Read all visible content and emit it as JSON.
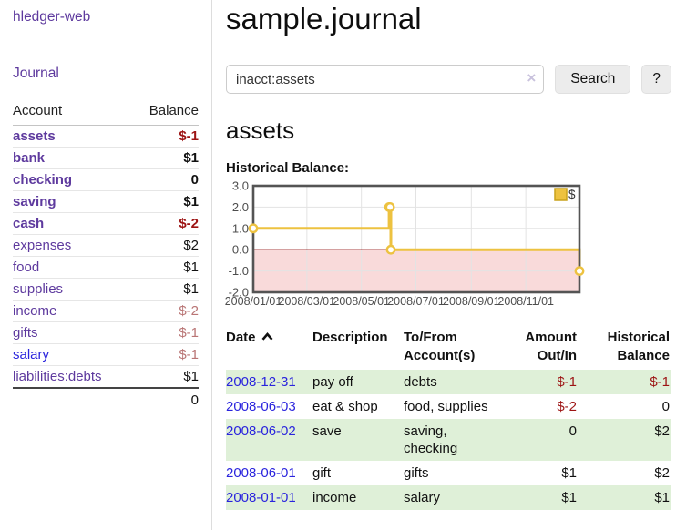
{
  "app": {
    "title": "hledger-web"
  },
  "sidebar": {
    "journal_link": "Journal",
    "accounts": {
      "header": {
        "account": "Account",
        "balance": "Balance"
      },
      "rows": [
        {
          "label": "assets",
          "depth": 1,
          "bold": true,
          "balance": "$-1",
          "negative": "strong"
        },
        {
          "label": "bank",
          "depth": 2,
          "bold": true,
          "balance": "$1"
        },
        {
          "label": "checking",
          "depth": 3,
          "bold": true,
          "balance": "0"
        },
        {
          "label": "saving",
          "depth": 3,
          "bold": true,
          "balance": "$1"
        },
        {
          "label": "cash",
          "depth": 2,
          "bold": true,
          "balance": "$-2",
          "negative": "strong"
        },
        {
          "label": "expenses",
          "depth": 1,
          "bold": false,
          "balance": "$2"
        },
        {
          "label": "food",
          "depth": 2,
          "bold": false,
          "balance": "$1"
        },
        {
          "label": "supplies",
          "depth": 2,
          "bold": false,
          "balance": "$1"
        },
        {
          "label": "income",
          "depth": 1,
          "bold": false,
          "balance": "$-2",
          "negative": "muted"
        },
        {
          "label": "gifts",
          "depth": 2,
          "bold": false,
          "balance": "$-1",
          "negative": "muted"
        },
        {
          "label": "salary",
          "depth": 2,
          "bold": false,
          "balance": "$-1",
          "negative": "muted",
          "link_style": "blue"
        },
        {
          "label": "liabilities:debts",
          "depth": 1,
          "bold": false,
          "balance": "$1"
        }
      ],
      "total": "0"
    }
  },
  "main": {
    "title": "sample.journal",
    "search": {
      "value": "inacct:assets",
      "clear_icon": "×",
      "search_button": "Search",
      "help_button": "?"
    },
    "account_heading": "assets",
    "chart_label": "Historical Balance:"
  },
  "chart_data": {
    "type": "line",
    "title": "Historical Balance",
    "step": true,
    "series": [
      {
        "name": "$",
        "color": "#edc240",
        "points": [
          [
            "2008-01-01",
            1
          ],
          [
            "2008-06-01",
            2
          ],
          [
            "2008-06-02",
            2
          ],
          [
            "2008-06-03",
            0
          ],
          [
            "2008-12-31",
            -1
          ]
        ]
      }
    ],
    "xlim": [
      "2008-01-01",
      "2008-12-31"
    ],
    "ylim": [
      -2,
      3
    ],
    "y_ticks": [
      "3.0",
      "2.0",
      "1.0",
      "0.0",
      "-1.0",
      "-2.0"
    ],
    "x_ticks": [
      "2008/01/01",
      "2008/03/01",
      "2008/05/01",
      "2008/07/01",
      "2008/09/01",
      "2008/11/01"
    ],
    "grid": true,
    "legend": {
      "position": "top-right",
      "label": "$"
    },
    "negative_region_fill": "#f9dada",
    "zero_line_color": "#8b0000",
    "grid_color": "#e3e3e3",
    "border_color": "#545454"
  },
  "register": {
    "columns": [
      {
        "label": "Date",
        "align": "left",
        "sorted": "asc"
      },
      {
        "label": "Description",
        "align": "left"
      },
      {
        "label": "To/From Account(s)",
        "align": "left"
      },
      {
        "label": "Amount Out/In",
        "align": "right"
      },
      {
        "label": "Historical Balance",
        "align": "right"
      }
    ],
    "rows": [
      {
        "date": "2008-12-31",
        "description": "pay off",
        "accounts": "debts",
        "amount": "$-1",
        "amount_neg": true,
        "balance": "$-1",
        "balance_neg": true,
        "shaded": true
      },
      {
        "date": "2008-06-03",
        "description": "eat & shop",
        "accounts": "food, supplies",
        "amount": "$-2",
        "amount_neg": true,
        "balance": "0",
        "balance_neg": false,
        "shaded": false
      },
      {
        "date": "2008-06-02",
        "description": "save",
        "accounts": "saving, checking",
        "amount": "0",
        "amount_neg": false,
        "balance": "$2",
        "balance_neg": false,
        "shaded": true
      },
      {
        "date": "2008-06-01",
        "description": "gift",
        "accounts": "gifts",
        "amount": "$1",
        "amount_neg": false,
        "balance": "$2",
        "balance_neg": false,
        "shaded": false
      },
      {
        "date": "2008-01-01",
        "description": "income",
        "accounts": "salary",
        "amount": "$1",
        "amount_neg": false,
        "balance": "$1",
        "balance_neg": false,
        "shaded": true
      }
    ]
  },
  "colors": {
    "purple_link": "#5e3a9e",
    "blue_link": "#2a24dd",
    "negative_strong": "#9d1414",
    "negative_muted": "#b97575",
    "row_shade_green": "#dff0d8",
    "chart_line_gold": "#edc240",
    "chart_negative_fill": "#f9dada",
    "chart_zero_line": "#8b0000",
    "button_bg": "#ececec"
  }
}
